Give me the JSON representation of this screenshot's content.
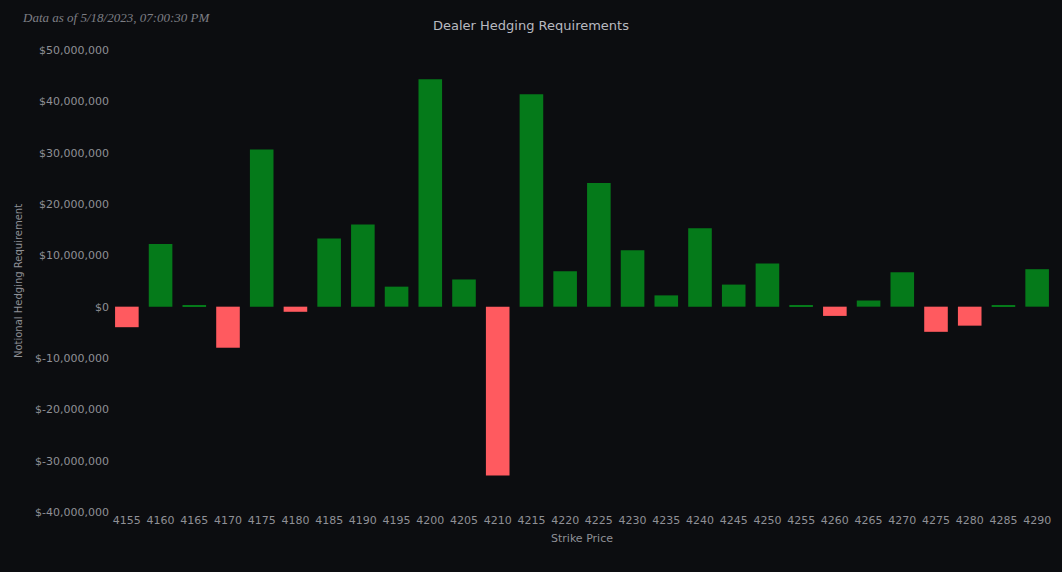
{
  "chart_data": {
    "type": "bar",
    "title": "Dealer Hedging Requirements",
    "subtitle": "Data as of 5/18/2023, 07:00:30 PM",
    "x_label": "Strike Price",
    "y_label": "Notional Hedging Requirement",
    "categories": [
      "4155",
      "4160",
      "4165",
      "4170",
      "4175",
      "4180",
      "4185",
      "4190",
      "4195",
      "4200",
      "4205",
      "4210",
      "4215",
      "4220",
      "4225",
      "4230",
      "4235",
      "4240",
      "4245",
      "4250",
      "4255",
      "4260",
      "4265",
      "4270",
      "4275",
      "4280",
      "4285",
      "4290"
    ],
    "values": [
      -4000000,
      12200000,
      200000,
      -8000000,
      30600000,
      -1000000,
      13300000,
      16000000,
      3900000,
      44300000,
      5300000,
      -32900000,
      41400000,
      6900000,
      24100000,
      11000000,
      2200000,
      15300000,
      4300000,
      8400000,
      300000,
      -1800000,
      1200000,
      6700000,
      -4900000,
      -3700000,
      200000,
      7300000
    ],
    "colors": [
      "#ff5a5f",
      "#057a1a",
      "#057a1a",
      "#ff5a5f",
      "#057a1a",
      "#ff5a5f",
      "#057a1a",
      "#057a1a",
      "#057a1a",
      "#057a1a",
      "#057a1a",
      "#ff5a5f",
      "#057a1a",
      "#057a1a",
      "#057a1a",
      "#057a1a",
      "#057a1a",
      "#057a1a",
      "#057a1a",
      "#057a1a",
      "#057a1a",
      "#ff5a5f",
      "#057a1a",
      "#057a1a",
      "#ff5a5f",
      "#ff5a5f",
      "#057a1a",
      "#057a1a"
    ],
    "ylim": [
      -40000000,
      50000000
    ],
    "yticks": [
      {
        "value": -40000000,
        "label": "$-40,000,000"
      },
      {
        "value": -30000000,
        "label": "$-30,000,000"
      },
      {
        "value": -20000000,
        "label": "$-20,000,000"
      },
      {
        "value": -10000000,
        "label": "$-10,000,000"
      },
      {
        "value": 0,
        "label": "$0"
      },
      {
        "value": 10000000,
        "label": "$10,000,000"
      },
      {
        "value": 20000000,
        "label": "$20,000,000"
      },
      {
        "value": 30000000,
        "label": "$30,000,000"
      },
      {
        "value": 40000000,
        "label": "$40,000,000"
      },
      {
        "value": 50000000,
        "label": "$50,000,000"
      }
    ],
    "grid": false
  }
}
